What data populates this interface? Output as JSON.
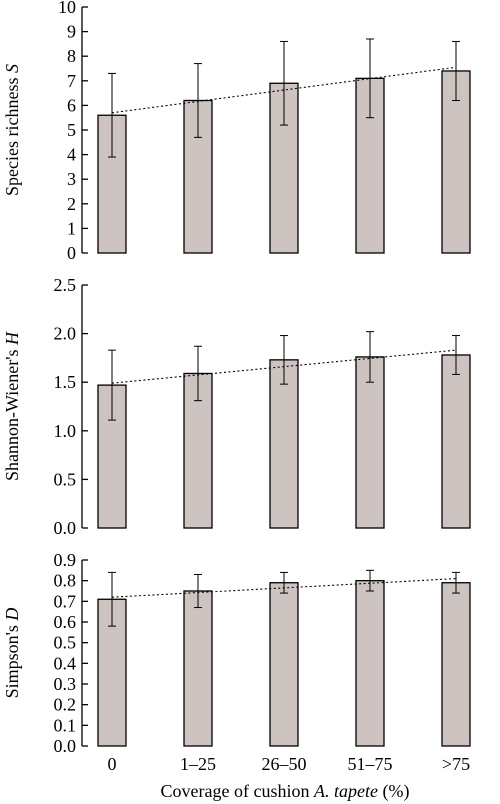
{
  "xlabel": {
    "prefix": "Coverage of cushion ",
    "italic": "A. tapete",
    "suffix": " (%)"
  },
  "chart_data": [
    {
      "type": "bar",
      "categories": [
        "0",
        "1–25",
        "26–50",
        "51–75",
        ">75"
      ],
      "ylabel": {
        "prefix": "Species richness ",
        "italic": "S"
      },
      "ylim": [
        0,
        10
      ],
      "yticks": [
        "0",
        "1",
        "2",
        "3",
        "4",
        "5",
        "6",
        "7",
        "8",
        "9",
        "10"
      ],
      "values": [
        5.6,
        6.2,
        6.9,
        7.1,
        7.4
      ],
      "errors": [
        1.7,
        1.5,
        1.7,
        1.6,
        1.2
      ],
      "trendline": [
        5.7,
        7.55
      ]
    },
    {
      "type": "bar",
      "categories": [
        "0",
        "1–25",
        "26–50",
        "51–75",
        ">75"
      ],
      "ylabel": {
        "prefix": "Shannon-Wiener's ",
        "italic": "H"
      },
      "ylim": [
        0,
        2.5
      ],
      "yticks": [
        "0.0",
        "0.5",
        "1.0",
        "1.5",
        "2.0",
        "2.5"
      ],
      "values": [
        1.47,
        1.59,
        1.73,
        1.76,
        1.78
      ],
      "errors": [
        0.36,
        0.28,
        0.25,
        0.26,
        0.2
      ],
      "trendline": [
        1.49,
        1.83
      ]
    },
    {
      "type": "bar",
      "categories": [
        "0",
        "1–25",
        "26–50",
        "51–75",
        ">75"
      ],
      "ylabel": {
        "prefix": "Simpson's ",
        "italic": "D"
      },
      "ylim": [
        0,
        0.9
      ],
      "yticks": [
        "0.0",
        "0.1",
        "0.2",
        "0.3",
        "0.4",
        "0.5",
        "0.6",
        "0.7",
        "0.8",
        "0.9"
      ],
      "values": [
        0.71,
        0.75,
        0.79,
        0.8,
        0.79
      ],
      "errors": [
        0.13,
        0.08,
        0.05,
        0.05,
        0.05
      ],
      "trendline": [
        0.72,
        0.81
      ]
    }
  ]
}
